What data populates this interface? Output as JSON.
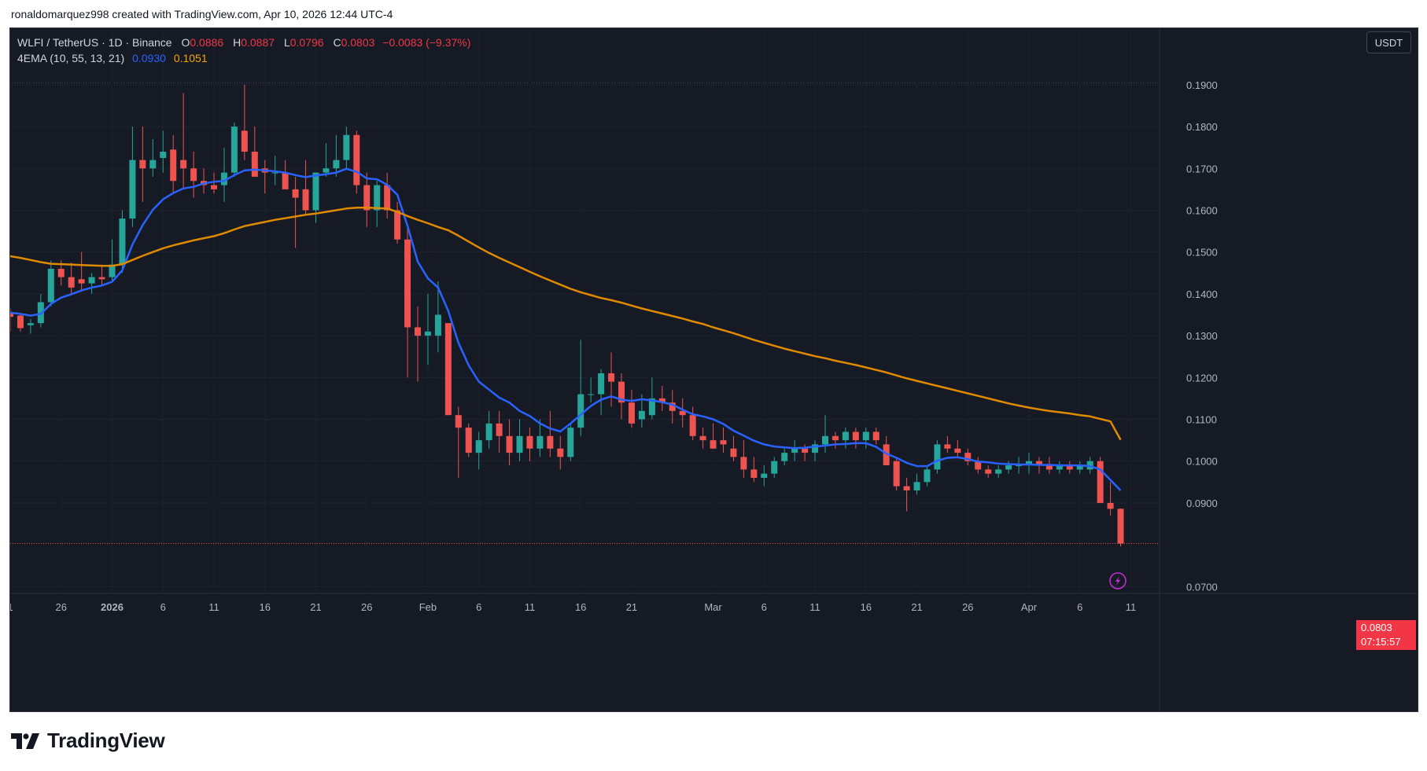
{
  "header": {
    "credit": "ronaldomarquez998 created with TradingView.com, Apr 10, 2026 12:44 UTC-4"
  },
  "legend": {
    "symbol": "WLFI / TetherUS · 1D · Binance",
    "o_label": "O",
    "o": "0.0886",
    "h_label": "H",
    "h": "0.0887",
    "l_label": "L",
    "l": "0.0796",
    "c_label": "C",
    "c": "0.0803",
    "change": "−0.0083 (−9.37%)",
    "indicator": "4EMA (10, 55, 13, 21)",
    "ema1_value": "0.0930",
    "ema2_value": "0.1051"
  },
  "currency_button": "USDT",
  "price_tag": {
    "price": "0.0803",
    "countdown": "07:15:57"
  },
  "logo": {
    "text": "TradingView"
  },
  "colors": {
    "up": "#26a69a",
    "down": "#ef5350",
    "ema_fast": "#2962ff",
    "ema_slow": "#e08a00",
    "background": "#161a25"
  },
  "chart_data": {
    "type": "candlestick",
    "y_ticks": [
      "0.1900",
      "0.1800",
      "0.1700",
      "0.1600",
      "0.1500",
      "0.1400",
      "0.1300",
      "0.1200",
      "0.1100",
      "0.1000",
      "0.0900",
      "0.0700"
    ],
    "x_ticks": [
      "1",
      "26",
      "2026",
      "6",
      "11",
      "16",
      "21",
      "26",
      "Feb",
      "6",
      "11",
      "16",
      "21",
      "Mar",
      "6",
      "11",
      "16",
      "21",
      "26",
      "Apr",
      "6",
      "11"
    ],
    "ylim": [
      0.068,
      0.202
    ],
    "last_price": 0.0803,
    "series": [
      {
        "name": "WLFI / TetherUS",
        "kind": "ohlc",
        "values": [
          [
            0.1355,
            0.1365,
            0.131,
            0.1345
          ],
          [
            0.1348,
            0.1352,
            0.131,
            0.1318
          ],
          [
            0.1325,
            0.134,
            0.1305,
            0.133
          ],
          [
            0.133,
            0.14,
            0.132,
            0.138
          ],
          [
            0.138,
            0.148,
            0.137,
            0.146
          ],
          [
            0.146,
            0.148,
            0.142,
            0.144
          ],
          [
            0.144,
            0.1475,
            0.14,
            0.1415
          ],
          [
            0.1435,
            0.15,
            0.1405,
            0.1425
          ],
          [
            0.1425,
            0.145,
            0.14,
            0.144
          ],
          [
            0.144,
            0.147,
            0.142,
            0.1435
          ],
          [
            0.144,
            0.153,
            0.143,
            0.147
          ],
          [
            0.147,
            0.16,
            0.145,
            0.158
          ],
          [
            0.158,
            0.18,
            0.156,
            0.172
          ],
          [
            0.172,
            0.18,
            0.162,
            0.17
          ],
          [
            0.17,
            0.177,
            0.168,
            0.172
          ],
          [
            0.1725,
            0.179,
            0.169,
            0.174
          ],
          [
            0.1745,
            0.178,
            0.164,
            0.167
          ],
          [
            0.172,
            0.188,
            0.165,
            0.17
          ],
          [
            0.17,
            0.174,
            0.163,
            0.167
          ],
          [
            0.167,
            0.17,
            0.164,
            0.166
          ],
          [
            0.166,
            0.169,
            0.164,
            0.165
          ],
          [
            0.166,
            0.175,
            0.162,
            0.169
          ],
          [
            0.169,
            0.181,
            0.168,
            0.18
          ],
          [
            0.179,
            0.19,
            0.172,
            0.174
          ],
          [
            0.174,
            0.18,
            0.168,
            0.168
          ],
          [
            0.17,
            0.172,
            0.164,
            0.169
          ],
          [
            0.169,
            0.173,
            0.166,
            0.169
          ],
          [
            0.169,
            0.172,
            0.166,
            0.165
          ],
          [
            0.165,
            0.168,
            0.151,
            0.163
          ],
          [
            0.165,
            0.172,
            0.159,
            0.16
          ],
          [
            0.16,
            0.169,
            0.157,
            0.169
          ],
          [
            0.169,
            0.176,
            0.168,
            0.17
          ],
          [
            0.17,
            0.178,
            0.168,
            0.172
          ],
          [
            0.172,
            0.18,
            0.17,
            0.178
          ],
          [
            0.178,
            0.179,
            0.164,
            0.166
          ],
          [
            0.166,
            0.169,
            0.156,
            0.16
          ],
          [
            0.16,
            0.167,
            0.156,
            0.166
          ],
          [
            0.166,
            0.169,
            0.158,
            0.16
          ],
          [
            0.16,
            0.162,
            0.152,
            0.153
          ],
          [
            0.153,
            0.156,
            0.12,
            0.132
          ],
          [
            0.132,
            0.137,
            0.119,
            0.13
          ],
          [
            0.13,
            0.14,
            0.123,
            0.131
          ],
          [
            0.13,
            0.143,
            0.126,
            0.135
          ],
          [
            0.133,
            0.133,
            0.117,
            0.111
          ],
          [
            0.111,
            0.113,
            0.096,
            0.108
          ],
          [
            0.108,
            0.109,
            0.101,
            0.102
          ],
          [
            0.102,
            0.107,
            0.098,
            0.105
          ],
          [
            0.105,
            0.112,
            0.103,
            0.109
          ],
          [
            0.109,
            0.112,
            0.102,
            0.106
          ],
          [
            0.106,
            0.11,
            0.099,
            0.102
          ],
          [
            0.102,
            0.11,
            0.1,
            0.106
          ],
          [
            0.106,
            0.108,
            0.1,
            0.103
          ],
          [
            0.103,
            0.11,
            0.101,
            0.106
          ],
          [
            0.106,
            0.112,
            0.101,
            0.103
          ],
          [
            0.103,
            0.106,
            0.098,
            0.101
          ],
          [
            0.101,
            0.109,
            0.1,
            0.108
          ],
          [
            0.108,
            0.129,
            0.106,
            0.116
          ],
          [
            0.116,
            0.12,
            0.114,
            0.116
          ],
          [
            0.116,
            0.122,
            0.111,
            0.121
          ],
          [
            0.121,
            0.126,
            0.113,
            0.119
          ],
          [
            0.119,
            0.121,
            0.11,
            0.114
          ],
          [
            0.114,
            0.117,
            0.108,
            0.109
          ],
          [
            0.11,
            0.116,
            0.108,
            0.112
          ],
          [
            0.111,
            0.12,
            0.11,
            0.115
          ],
          [
            0.115,
            0.118,
            0.112,
            0.114
          ],
          [
            0.114,
            0.117,
            0.109,
            0.112
          ],
          [
            0.112,
            0.115,
            0.108,
            0.111
          ],
          [
            0.111,
            0.113,
            0.105,
            0.106
          ],
          [
            0.106,
            0.108,
            0.103,
            0.105
          ],
          [
            0.105,
            0.109,
            0.103,
            0.103
          ],
          [
            0.105,
            0.108,
            0.102,
            0.104
          ],
          [
            0.103,
            0.106,
            0.1,
            0.101
          ],
          [
            0.101,
            0.105,
            0.096,
            0.098
          ],
          [
            0.098,
            0.101,
            0.095,
            0.096
          ],
          [
            0.096,
            0.099,
            0.094,
            0.097
          ],
          [
            0.097,
            0.101,
            0.096,
            0.1
          ],
          [
            0.1,
            0.103,
            0.099,
            0.102
          ],
          [
            0.102,
            0.105,
            0.1,
            0.103
          ],
          [
            0.103,
            0.104,
            0.1,
            0.102
          ],
          [
            0.102,
            0.105,
            0.1,
            0.104
          ],
          [
            0.104,
            0.111,
            0.102,
            0.106
          ],
          [
            0.106,
            0.107,
            0.103,
            0.105
          ],
          [
            0.105,
            0.108,
            0.103,
            0.107
          ],
          [
            0.107,
            0.108,
            0.103,
            0.105
          ],
          [
            0.105,
            0.108,
            0.103,
            0.107
          ],
          [
            0.107,
            0.108,
            0.104,
            0.105
          ],
          [
            0.104,
            0.106,
            0.099,
            0.099
          ],
          [
            0.1,
            0.101,
            0.093,
            0.094
          ],
          [
            0.094,
            0.096,
            0.088,
            0.093
          ],
          [
            0.093,
            0.097,
            0.092,
            0.095
          ],
          [
            0.095,
            0.099,
            0.094,
            0.098
          ],
          [
            0.098,
            0.105,
            0.097,
            0.104
          ],
          [
            0.104,
            0.106,
            0.102,
            0.103
          ],
          [
            0.103,
            0.105,
            0.101,
            0.102
          ],
          [
            0.102,
            0.103,
            0.099,
            0.1
          ],
          [
            0.1,
            0.101,
            0.097,
            0.098
          ],
          [
            0.098,
            0.099,
            0.096,
            0.097
          ],
          [
            0.097,
            0.099,
            0.096,
            0.098
          ],
          [
            0.098,
            0.1,
            0.097,
            0.099
          ],
          [
            0.099,
            0.101,
            0.097,
            0.099
          ],
          [
            0.099,
            0.102,
            0.097,
            0.1
          ],
          [
            0.1,
            0.101,
            0.097,
            0.099
          ],
          [
            0.099,
            0.101,
            0.097,
            0.098
          ],
          [
            0.098,
            0.1,
            0.097,
            0.099
          ],
          [
            0.099,
            0.1,
            0.097,
            0.098
          ],
          [
            0.098,
            0.1,
            0.097,
            0.099
          ],
          [
            0.098,
            0.101,
            0.097,
            0.1
          ],
          [
            0.1,
            0.101,
            0.095,
            0.09
          ],
          [
            0.09,
            0.095,
            0.087,
            0.0886
          ],
          [
            0.0886,
            0.0887,
            0.0796,
            0.0803
          ]
        ]
      },
      {
        "name": "EMA 10",
        "kind": "line",
        "color": "#2962ff",
        "values": [
          0.1355,
          0.1352,
          0.1348,
          0.1352,
          0.1376,
          0.1391,
          0.1399,
          0.1408,
          0.1415,
          0.142,
          0.1429,
          0.1456,
          0.1518,
          0.1564,
          0.1601,
          0.1626,
          0.1641,
          0.1652,
          0.1656,
          0.1664,
          0.1668,
          0.167,
          0.1684,
          0.1695,
          0.1697,
          0.1695,
          0.1693,
          0.169,
          0.1684,
          0.1679,
          0.1683,
          0.1686,
          0.169,
          0.1699,
          0.1692,
          0.1676,
          0.1674,
          0.1661,
          0.1637,
          0.1563,
          0.1477,
          0.1437,
          0.1415,
          0.1359,
          0.1283,
          0.1229,
          0.119,
          0.1171,
          0.1152,
          0.114,
          0.112,
          0.1108,
          0.109,
          0.1078,
          0.1071,
          0.109,
          0.1111,
          0.1132,
          0.1147,
          0.1155,
          0.1147,
          0.1144,
          0.1148,
          0.1145,
          0.1141,
          0.1135,
          0.1123,
          0.1112,
          0.1107,
          0.11,
          0.1089,
          0.1073,
          0.1061,
          0.1049,
          0.104,
          0.1035,
          0.1033,
          0.1031,
          0.1032,
          0.1035,
          0.1037,
          0.104,
          0.1041,
          0.1043,
          0.1043,
          0.1034,
          0.1018,
          0.1008,
          0.0996,
          0.0988,
          0.0988,
          0.1001,
          0.1008,
          0.1009,
          0.1005,
          0.0999,
          0.0997,
          0.0994,
          0.0993,
          0.0992,
          0.0992,
          0.0991,
          0.0991,
          0.099,
          0.099,
          0.099,
          0.0988,
          0.098,
          0.0955,
          0.093
        ]
      },
      {
        "name": "EMA 55",
        "kind": "line",
        "color": "#e08a00",
        "values": [
          0.149,
          0.1486,
          0.1481,
          0.1476,
          0.1472,
          0.1471,
          0.147,
          0.1469,
          0.1468,
          0.1467,
          0.1467,
          0.1471,
          0.1481,
          0.1491,
          0.15,
          0.1509,
          0.1516,
          0.1522,
          0.1528,
          0.1533,
          0.1538,
          0.1545,
          0.1554,
          0.1562,
          0.1567,
          0.1572,
          0.1577,
          0.1581,
          0.1585,
          0.1589,
          0.1592,
          0.1596,
          0.16,
          0.1604,
          0.1606,
          0.1606,
          0.1605,
          0.1604,
          0.1596,
          0.1586,
          0.1577,
          0.1569,
          0.156,
          0.1552,
          0.1539,
          0.1525,
          0.1511,
          0.1498,
          0.1486,
          0.1475,
          0.1464,
          0.1453,
          0.1442,
          0.1432,
          0.1422,
          0.1412,
          0.1404,
          0.1397,
          0.139,
          0.1385,
          0.1379,
          0.1372,
          0.1365,
          0.1359,
          0.1353,
          0.1347,
          0.1341,
          0.1334,
          0.1328,
          0.132,
          0.1313,
          0.1306,
          0.1298,
          0.129,
          0.1283,
          0.1276,
          0.1269,
          0.1263,
          0.1257,
          0.1251,
          0.1246,
          0.124,
          0.1235,
          0.123,
          0.1224,
          0.1218,
          0.1212,
          0.1205,
          0.1198,
          0.1192,
          0.1186,
          0.118,
          0.1174,
          0.1168,
          0.1162,
          0.1156,
          0.115,
          0.1144,
          0.1138,
          0.1133,
          0.1128,
          0.1124,
          0.112,
          0.1117,
          0.1114,
          0.111,
          0.1107,
          0.1101,
          0.1095,
          0.1051
        ]
      }
    ]
  }
}
